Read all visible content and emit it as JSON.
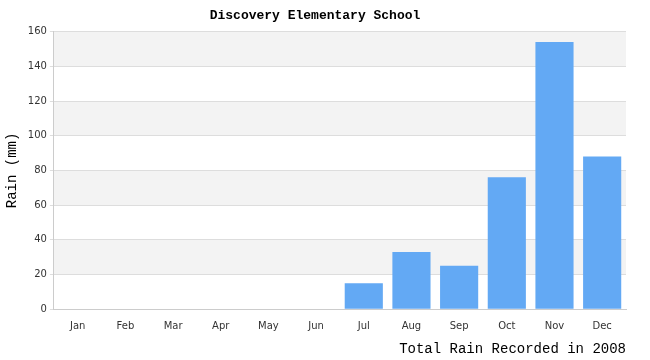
{
  "chart_data": {
    "type": "bar",
    "title": "Discovery Elementary School",
    "xlabel": "Total Rain Recorded in 2008",
    "ylabel": "Rain (mm)",
    "categories": [
      "Jan",
      "Feb",
      "Mar",
      "Apr",
      "May",
      "Jun",
      "Jul",
      "Aug",
      "Sep",
      "Oct",
      "Nov",
      "Dec"
    ],
    "values": [
      0,
      0,
      0,
      0,
      0,
      0,
      15,
      33,
      25,
      76,
      154,
      88
    ],
    "color": "#63a9f4",
    "ylim": [
      0,
      160
    ],
    "yticks": [
      0,
      20,
      40,
      60,
      80,
      100,
      120,
      140,
      160
    ],
    "grid": true
  }
}
